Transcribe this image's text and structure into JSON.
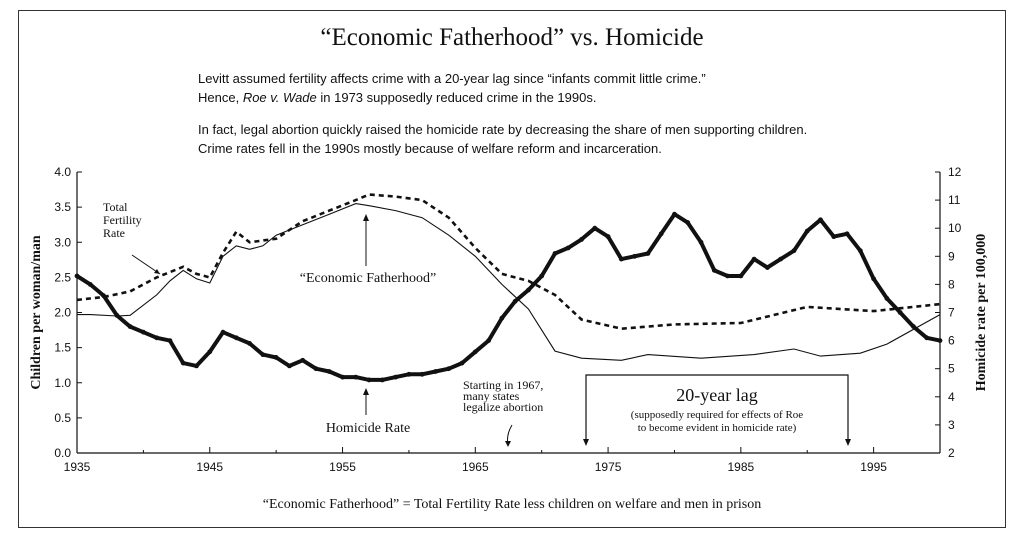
{
  "title": "“Economic Fatherhood” vs. Homicide",
  "intro": {
    "line1": "Levitt assumed fertility affects crime with a 20-year lag since “infants commit little crime.”",
    "line2_pre": "Hence, ",
    "line2_italic": "Roe v. Wade",
    "line2_post": " in 1973 supposedly reduced crime in the 1990s.",
    "line3": "In fact, legal abortion quickly raised the homicide rate by decreasing the share of men supporting children.",
    "line4": "Crime rates fell in the 1990s mostly because of welfare reform and incarceration."
  },
  "footnote": "“Economic Fatherhood” =  Total Fertility Rate less children on welfare and men in prison",
  "chart_data": {
    "type": "line",
    "ylabel": "Children per woman/man",
    "y2label": "Homicide rate per 100,000",
    "ylim": [
      0.0,
      4.0
    ],
    "y2lim": [
      2,
      12
    ],
    "xlim": [
      1935,
      2000
    ],
    "x_ticks": [
      "1935",
      "1945",
      "1955",
      "1965",
      "1975",
      "1985",
      "1995"
    ],
    "y_ticks": [
      "0.0",
      "0.5",
      "1.0",
      "1.5",
      "2.0",
      "2.5",
      "3.0",
      "3.5",
      "4.0"
    ],
    "y2_ticks": [
      "2",
      "3",
      "4",
      "5",
      "6",
      "7",
      "8",
      "9",
      "10",
      "11",
      "12"
    ],
    "annotations": {
      "tfr": [
        "Total",
        "Fertility",
        "Rate"
      ],
      "econ": "“Economic Fatherhood”",
      "homicide": "Homicide Rate",
      "start1967": [
        "Starting in 1967,",
        "many states",
        "legalize abortion"
      ],
      "lag_title": "20-year lag",
      "lag_note1": "(supposedly required for effects of Roe",
      "lag_note2": "to become evident in homicide rate)"
    },
    "series": [
      {
        "name": "Total Fertility Rate",
        "axis": "left",
        "style": "dashed",
        "points": [
          [
            1935,
            2.18
          ],
          [
            1937,
            2.22
          ],
          [
            1939,
            2.3
          ],
          [
            1941,
            2.5
          ],
          [
            1943,
            2.65
          ],
          [
            1944,
            2.55
          ],
          [
            1945,
            2.5
          ],
          [
            1946,
            2.85
          ],
          [
            1947,
            3.15
          ],
          [
            1948,
            3.0
          ],
          [
            1950,
            3.05
          ],
          [
            1952,
            3.3
          ],
          [
            1954,
            3.45
          ],
          [
            1956,
            3.6
          ],
          [
            1957,
            3.68
          ],
          [
            1959,
            3.65
          ],
          [
            1961,
            3.6
          ],
          [
            1963,
            3.35
          ],
          [
            1965,
            2.92
          ],
          [
            1967,
            2.55
          ],
          [
            1969,
            2.45
          ],
          [
            1971,
            2.25
          ],
          [
            1973,
            1.9
          ],
          [
            1976,
            1.77
          ],
          [
            1980,
            1.83
          ],
          [
            1985,
            1.85
          ],
          [
            1990,
            2.08
          ],
          [
            1995,
            2.02
          ],
          [
            2000,
            2.12
          ]
        ]
      },
      {
        "name": "“Economic Fatherhood”",
        "axis": "left",
        "style": "thin",
        "points": [
          [
            1935,
            1.97
          ],
          [
            1936,
            1.97
          ],
          [
            1938,
            1.95
          ],
          [
            1939,
            1.96
          ],
          [
            1941,
            2.25
          ],
          [
            1942,
            2.45
          ],
          [
            1943,
            2.6
          ],
          [
            1944,
            2.48
          ],
          [
            1945,
            2.42
          ],
          [
            1946,
            2.8
          ],
          [
            1947,
            2.95
          ],
          [
            1948,
            2.9
          ],
          [
            1949,
            2.95
          ],
          [
            1950,
            3.1
          ],
          [
            1952,
            3.25
          ],
          [
            1954,
            3.4
          ],
          [
            1956,
            3.55
          ],
          [
            1957,
            3.52
          ],
          [
            1959,
            3.45
          ],
          [
            1961,
            3.35
          ],
          [
            1963,
            3.1
          ],
          [
            1965,
            2.8
          ],
          [
            1967,
            2.4
          ],
          [
            1969,
            2.05
          ],
          [
            1971,
            1.45
          ],
          [
            1973,
            1.35
          ],
          [
            1976,
            1.32
          ],
          [
            1978,
            1.4
          ],
          [
            1982,
            1.35
          ],
          [
            1986,
            1.4
          ],
          [
            1989,
            1.48
          ],
          [
            1991,
            1.38
          ],
          [
            1994,
            1.42
          ],
          [
            1996,
            1.55
          ],
          [
            2000,
            1.97
          ]
        ]
      },
      {
        "name": "Homicide Rate",
        "axis": "right",
        "style": "thick",
        "points": [
          [
            1935,
            8.3
          ],
          [
            1936,
            8.0
          ],
          [
            1937,
            7.6
          ],
          [
            1938,
            6.9
          ],
          [
            1939,
            6.5
          ],
          [
            1940,
            6.3
          ],
          [
            1941,
            6.1
          ],
          [
            1942,
            6.0
          ],
          [
            1943,
            5.2
          ],
          [
            1944,
            5.1
          ],
          [
            1945,
            5.6
          ],
          [
            1946,
            6.3
          ],
          [
            1947,
            6.1
          ],
          [
            1948,
            5.9
          ],
          [
            1949,
            5.5
          ],
          [
            1950,
            5.4
          ],
          [
            1951,
            5.1
          ],
          [
            1952,
            5.3
          ],
          [
            1953,
            5.0
          ],
          [
            1954,
            4.9
          ],
          [
            1955,
            4.7
          ],
          [
            1956,
            4.7
          ],
          [
            1957,
            4.6
          ],
          [
            1958,
            4.6
          ],
          [
            1959,
            4.7
          ],
          [
            1960,
            4.8
          ],
          [
            1961,
            4.8
          ],
          [
            1962,
            4.9
          ],
          [
            1963,
            5.0
          ],
          [
            1964,
            5.2
          ],
          [
            1965,
            5.6
          ],
          [
            1966,
            6.0
          ],
          [
            1967,
            6.8
          ],
          [
            1968,
            7.4
          ],
          [
            1969,
            7.8
          ],
          [
            1970,
            8.3
          ],
          [
            1971,
            9.1
          ],
          [
            1972,
            9.3
          ],
          [
            1973,
            9.6
          ],
          [
            1974,
            10.0
          ],
          [
            1975,
            9.7
          ],
          [
            1976,
            8.9
          ],
          [
            1977,
            9.0
          ],
          [
            1978,
            9.1
          ],
          [
            1979,
            9.8
          ],
          [
            1980,
            10.5
          ],
          [
            1981,
            10.2
          ],
          [
            1982,
            9.5
          ],
          [
            1983,
            8.5
          ],
          [
            1984,
            8.3
          ],
          [
            1985,
            8.3
          ],
          [
            1986,
            8.9
          ],
          [
            1987,
            8.6
          ],
          [
            1988,
            8.9
          ],
          [
            1989,
            9.2
          ],
          [
            1990,
            9.9
          ],
          [
            1991,
            10.3
          ],
          [
            1992,
            9.7
          ],
          [
            1993,
            9.8
          ],
          [
            1994,
            9.2
          ],
          [
            1995,
            8.2
          ],
          [
            1996,
            7.5
          ],
          [
            1997,
            7.0
          ],
          [
            1998,
            6.5
          ],
          [
            1999,
            6.1
          ],
          [
            2000,
            6.0
          ]
        ]
      }
    ]
  }
}
